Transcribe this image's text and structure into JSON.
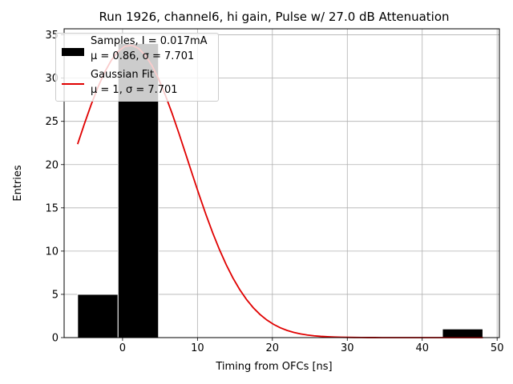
{
  "chart_data": {
    "type": "bar",
    "title": "Run 1926, channel6, hi gain, Pulse w/ 27.0 dB Attenuation",
    "xlabel": "Timing from OFCs [ns]",
    "ylabel": "Entries",
    "xlim": [
      -7.8,
      50.3
    ],
    "ylim": [
      0,
      35.7
    ],
    "x_ticks": [
      0,
      10,
      20,
      30,
      40,
      50
    ],
    "y_ticks": [
      0,
      5,
      10,
      15,
      20,
      25,
      30,
      35
    ],
    "grid": true,
    "legend_placement": "upper-left",
    "histogram": {
      "name": "Samples, I = 0.017mA",
      "stats_label": "μ = 0.86, σ = 7.701",
      "color": "#000000",
      "bins": [
        {
          "x0": -6.0,
          "x1": -0.6,
          "count": 5
        },
        {
          "x0": -0.6,
          "x1": 4.8,
          "count": 34
        },
        {
          "x0": 42.7,
          "x1": 48.1,
          "count": 1
        }
      ]
    },
    "fit": {
      "name": "Gaussian Fit",
      "stats_label": "μ = 1, σ = 7.701",
      "color": "#e00000",
      "mu": 1,
      "sigma": 7.701,
      "amplitude": 33.8,
      "x_range": [
        -6.0,
        48.1
      ]
    }
  }
}
